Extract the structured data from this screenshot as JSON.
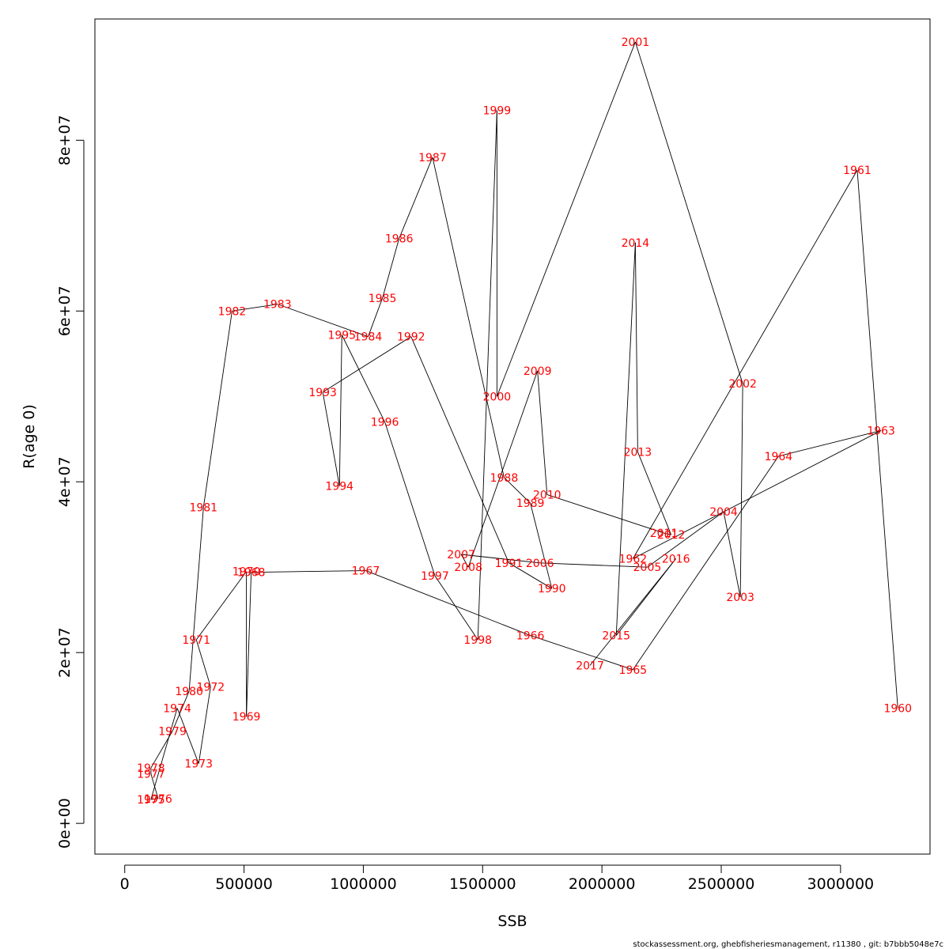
{
  "chart_data": {
    "type": "scatter",
    "xlabel": "SSB",
    "ylabel": "R(age 0)",
    "xlim": [
      -125000,
      3375000
    ],
    "ylim": [
      -3600000,
      94200000
    ],
    "xticks": [
      0,
      500000,
      1000000,
      1500000,
      2000000,
      2500000,
      3000000
    ],
    "xtick_labels": [
      "0",
      "500000",
      "1000000",
      "1500000",
      "2000000",
      "2500000",
      "3000000"
    ],
    "yticks": [
      0,
      20000000,
      40000000,
      60000000,
      80000000
    ],
    "ytick_labels": [
      "0e+00",
      "2e+07",
      "4e+07",
      "6e+07",
      "8e+07"
    ],
    "grid": false,
    "connected": true,
    "line_color": "#000000",
    "label_color": "#ff0000",
    "points": [
      {
        "year": "1960",
        "x": 3240000,
        "y": 13500000
      },
      {
        "year": "1961",
        "x": 3070000,
        "y": 76500000
      },
      {
        "year": "1962",
        "x": 2130000,
        "y": 31000000
      },
      {
        "year": "1963",
        "x": 3170000,
        "y": 46000000
      },
      {
        "year": "1964",
        "x": 2740000,
        "y": 43000000
      },
      {
        "year": "1965",
        "x": 2130000,
        "y": 18000000
      },
      {
        "year": "1966",
        "x": 1700000,
        "y": 22000000
      },
      {
        "year": "1967",
        "x": 1010000,
        "y": 29600000
      },
      {
        "year": "1968",
        "x": 530000,
        "y": 29400000
      },
      {
        "year": "1969",
        "x": 510000,
        "y": 12500000
      },
      {
        "year": "1970",
        "x": 510000,
        "y": 29500000
      },
      {
        "year": "1971",
        "x": 300000,
        "y": 21500000
      },
      {
        "year": "1972",
        "x": 360000,
        "y": 16000000
      },
      {
        "year": "1973",
        "x": 310000,
        "y": 7000000
      },
      {
        "year": "1974",
        "x": 220000,
        "y": 13500000
      },
      {
        "year": "1975",
        "x": 110000,
        "y": 2800000
      },
      {
        "year": "1976",
        "x": 140000,
        "y": 2900000
      },
      {
        "year": "1977",
        "x": 110000,
        "y": 5800000
      },
      {
        "year": "1978",
        "x": 110000,
        "y": 6500000
      },
      {
        "year": "1979",
        "x": 200000,
        "y": 10800000
      },
      {
        "year": "1980",
        "x": 270000,
        "y": 15500000
      },
      {
        "year": "1981",
        "x": 330000,
        "y": 37000000
      },
      {
        "year": "1982",
        "x": 450000,
        "y": 60000000
      },
      {
        "year": "1983",
        "x": 640000,
        "y": 60800000
      },
      {
        "year": "1984",
        "x": 1020000,
        "y": 57000000
      },
      {
        "year": "1985",
        "x": 1080000,
        "y": 61500000
      },
      {
        "year": "1986",
        "x": 1150000,
        "y": 68500000
      },
      {
        "year": "1987",
        "x": 1290000,
        "y": 78000000
      },
      {
        "year": "1988",
        "x": 1590000,
        "y": 40500000
      },
      {
        "year": "1989",
        "x": 1700000,
        "y": 37500000
      },
      {
        "year": "1990",
        "x": 1790000,
        "y": 27500000
      },
      {
        "year": "1991",
        "x": 1610000,
        "y": 30500000
      },
      {
        "year": "1992",
        "x": 1200000,
        "y": 57000000
      },
      {
        "year": "1993",
        "x": 830000,
        "y": 50500000
      },
      {
        "year": "1994",
        "x": 900000,
        "y": 39500000
      },
      {
        "year": "1995",
        "x": 910000,
        "y": 57200000
      },
      {
        "year": "1996",
        "x": 1090000,
        "y": 47000000
      },
      {
        "year": "1997",
        "x": 1300000,
        "y": 29000000
      },
      {
        "year": "1998",
        "x": 1480000,
        "y": 21500000
      },
      {
        "year": "1999",
        "x": 1560000,
        "y": 83500000
      },
      {
        "year": "2000",
        "x": 1560000,
        "y": 50000000
      },
      {
        "year": "2001",
        "x": 2140000,
        "y": 91500000
      },
      {
        "year": "2002",
        "x": 2590000,
        "y": 51500000
      },
      {
        "year": "2003",
        "x": 2580000,
        "y": 26500000
      },
      {
        "year": "2004",
        "x": 2510000,
        "y": 36500000
      },
      {
        "year": "2005",
        "x": 2190000,
        "y": 30000000
      },
      {
        "year": "2006",
        "x": 1740000,
        "y": 30500000
      },
      {
        "year": "2007",
        "x": 1410000,
        "y": 31500000
      },
      {
        "year": "2008",
        "x": 1440000,
        "y": 30000000
      },
      {
        "year": "2009",
        "x": 1730000,
        "y": 53000000
      },
      {
        "year": "2010",
        "x": 1770000,
        "y": 38500000
      },
      {
        "year": "2011",
        "x": 2260000,
        "y": 34000000
      },
      {
        "year": "2012",
        "x": 2290000,
        "y": 33800000
      },
      {
        "year": "2013",
        "x": 2150000,
        "y": 43500000
      },
      {
        "year": "2014",
        "x": 2140000,
        "y": 68000000
      },
      {
        "year": "2015",
        "x": 2060000,
        "y": 22000000
      },
      {
        "year": "2016",
        "x": 2310000,
        "y": 31000000
      },
      {
        "year": "2017",
        "x": 1950000,
        "y": 18500000
      }
    ]
  },
  "footer": {
    "text": "stockassessment.org, ghebfisheriesmanagement, r11380 , git: b7bbb5048e7c"
  }
}
